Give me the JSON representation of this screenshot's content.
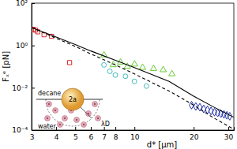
{
  "chart_data": {
    "type": "scatter",
    "x_label": "d* [μm]",
    "y_label": "Fₓᵉ [pN]",
    "log": true,
    "grid": false,
    "xlim": [
      3,
      32
    ],
    "ylim": [
      0.0001,
      100
    ],
    "xticks": [
      3,
      4,
      5,
      6,
      7,
      8,
      10,
      20,
      30
    ],
    "yticks": [
      {
        "value": 0.0001,
        "label": "10⁻⁴"
      },
      {
        "value": 0.01,
        "label": "10⁻²"
      },
      {
        "value": 1,
        "label": "10⁰"
      },
      {
        "value": 100,
        "label": "10²"
      }
    ],
    "annotations": [
      "decane",
      "water",
      "2a",
      "λD"
    ],
    "series": [
      {
        "type": "scatter",
        "marker": "square",
        "color": "#d62728",
        "x": [
          3.06,
          3.14,
          3.22,
          3.47,
          3.79,
          4.68
        ],
        "values": [
          5.8,
          5.3,
          4.4,
          3.2,
          2.7,
          0.155
        ]
      },
      {
        "type": "scatter",
        "marker": "triangle",
        "color": "#66cc33",
        "x": [
          7.0,
          7.8,
          8.5,
          9.2,
          10.0,
          11.0,
          12.5,
          14.0,
          15.5
        ],
        "values": [
          0.35,
          0.12,
          0.16,
          0.1,
          0.13,
          0.09,
          0.08,
          0.07,
          0.045
        ]
      },
      {
        "type": "scatter",
        "marker": "circle",
        "color": "#44bbbb",
        "x": [
          7.0,
          7.5,
          8.0,
          9.0,
          10.0,
          11.5
        ],
        "values": [
          0.12,
          0.06,
          0.04,
          0.035,
          0.02,
          0.012
        ]
      },
      {
        "type": "scatter",
        "marker": "diamond",
        "color": "#2233aa",
        "x": [
          19.5,
          20.5,
          21.5,
          22.5,
          23.5,
          24.5,
          25.5,
          26.5,
          27.5,
          28.5,
          29.5,
          30.5
        ],
        "values": [
          0.0015,
          0.0013,
          0.0012,
          0.001,
          0.0009,
          0.0008,
          0.0007,
          0.00065,
          0.0006,
          0.00055,
          0.0005,
          0.00045
        ]
      },
      {
        "type": "line",
        "line_style": "solid",
        "color": "#000000",
        "x": [
          3,
          4,
          5,
          6,
          8,
          10,
          15,
          20,
          25,
          32
        ],
        "values": [
          7,
          2.5,
          1.1,
          0.55,
          0.2,
          0.09,
          0.02,
          0.004,
          0.0013,
          0.0004
        ]
      },
      {
        "type": "line",
        "line_style": "dashed",
        "color": "#000000",
        "x": [
          3,
          4,
          5,
          6,
          8,
          10,
          15,
          20,
          25,
          32
        ],
        "values": [
          7,
          2.2,
          0.9,
          0.4,
          0.12,
          0.045,
          0.007,
          0.0015,
          0.0004,
          0.00011
        ]
      }
    ]
  }
}
